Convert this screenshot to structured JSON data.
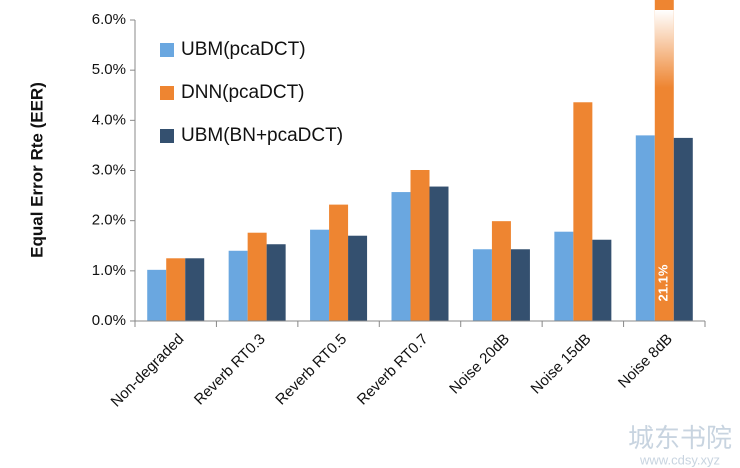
{
  "chart_data": {
    "type": "bar",
    "y_label": "Equal Error Rte (EER)",
    "categories": [
      "Non-degraded",
      "Reverb RT0.3",
      "Reverb RT0.5",
      "Reverb RT0.7",
      "Noise 20dB",
      "Noise 15dB",
      "Noise 8dB"
    ],
    "series": [
      {
        "name": "UBM(pcaDCT)",
        "color": "#6aa7e0",
        "values": [
          1.02,
          1.4,
          1.82,
          2.57,
          1.43,
          1.78,
          3.7
        ]
      },
      {
        "name": "DNN(pcaDCT)",
        "color": "#ee8531",
        "values": [
          1.25,
          1.76,
          2.32,
          3.01,
          1.99,
          4.36,
          21.1
        ],
        "value_labels": [
          null,
          null,
          null,
          null,
          null,
          null,
          "21.1%"
        ]
      },
      {
        "name": "UBM(BN+pcaDCT)",
        "color": "#34506f",
        "values": [
          1.25,
          1.53,
          1.7,
          2.68,
          1.43,
          1.62,
          3.65
        ]
      }
    ],
    "ylim": [
      0,
      6
    ],
    "yticks": [
      {
        "value": 0,
        "label": "0.0%"
      },
      {
        "value": 1,
        "label": "1.0%"
      },
      {
        "value": 2,
        "label": "2.0%"
      },
      {
        "value": 3,
        "label": "3.0%"
      },
      {
        "value": 4,
        "label": "4.0%"
      },
      {
        "value": 5,
        "label": "5.0%"
      },
      {
        "value": 6,
        "label": "6.0%"
      }
    ],
    "grid": false,
    "legend": "top-left",
    "watermark": [
      "城东书院",
      "www.cdsy.xyz"
    ]
  }
}
